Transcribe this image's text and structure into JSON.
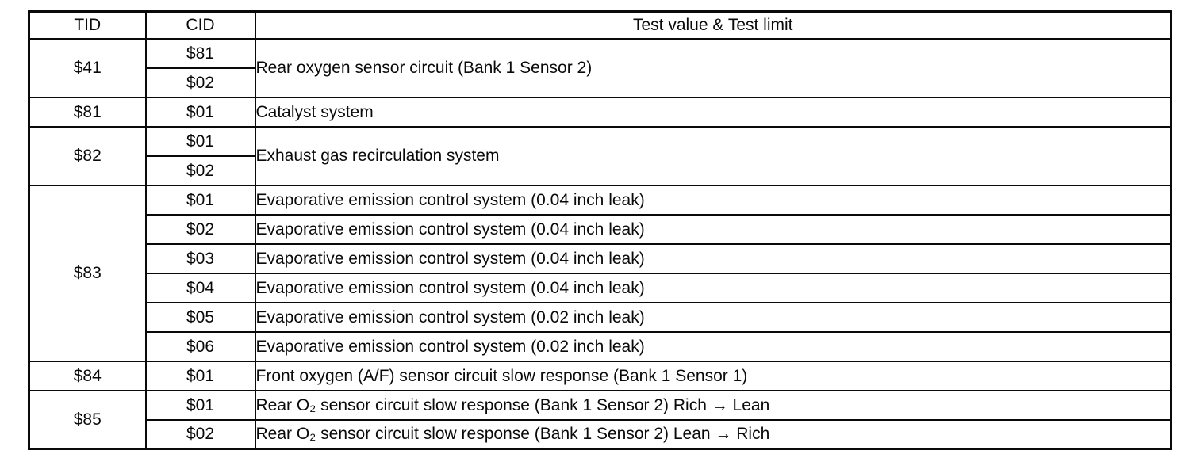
{
  "table": {
    "headers": {
      "tid": "TID",
      "cid": "CID",
      "test": "Test value & Test limit"
    },
    "groups": [
      {
        "tid": "$41",
        "rows": [
          {
            "cid": "$81",
            "desc": "Rear oxygen sensor circuit (Bank 1 Sensor 2)"
          },
          {
            "cid": "$02"
          }
        ]
      },
      {
        "tid": "$81",
        "rows": [
          {
            "cid": "$01",
            "desc": "Catalyst system"
          }
        ]
      },
      {
        "tid": "$82",
        "rows": [
          {
            "cid": "$01",
            "desc": "Exhaust gas recirculation system"
          },
          {
            "cid": "$02"
          }
        ]
      },
      {
        "tid": "$83",
        "rows": [
          {
            "cid": "$01",
            "desc": "Evaporative emission control system (0.04 inch leak)"
          },
          {
            "cid": "$02",
            "desc": "Evaporative emission control system (0.04 inch leak)"
          },
          {
            "cid": "$03",
            "desc": "Evaporative emission control system (0.04 inch leak)"
          },
          {
            "cid": "$04",
            "desc": "Evaporative emission control system (0.04 inch leak)"
          },
          {
            "cid": "$05",
            "desc": "Evaporative emission control system (0.02 inch leak)"
          },
          {
            "cid": "$06",
            "desc": "Evaporative emission control system (0.02 inch leak)"
          }
        ]
      },
      {
        "tid": "$84",
        "rows": [
          {
            "cid": "$01",
            "desc": "Front oxygen (A/F) sensor circuit slow response (Bank 1 Sensor 1)"
          }
        ]
      },
      {
        "tid": "$85",
        "rows": [
          {
            "cid": "$01",
            "desc": "Rear O₂ sensor circuit slow response (Bank 1 Sensor 2) Rich → Lean"
          },
          {
            "cid": "$02",
            "desc": "Rear O₂ sensor circuit slow response (Bank 1 Sensor 2) Lean → Rich"
          }
        ]
      }
    ],
    "border_color": "#0a0a0a",
    "background_color": "#ffffff"
  }
}
